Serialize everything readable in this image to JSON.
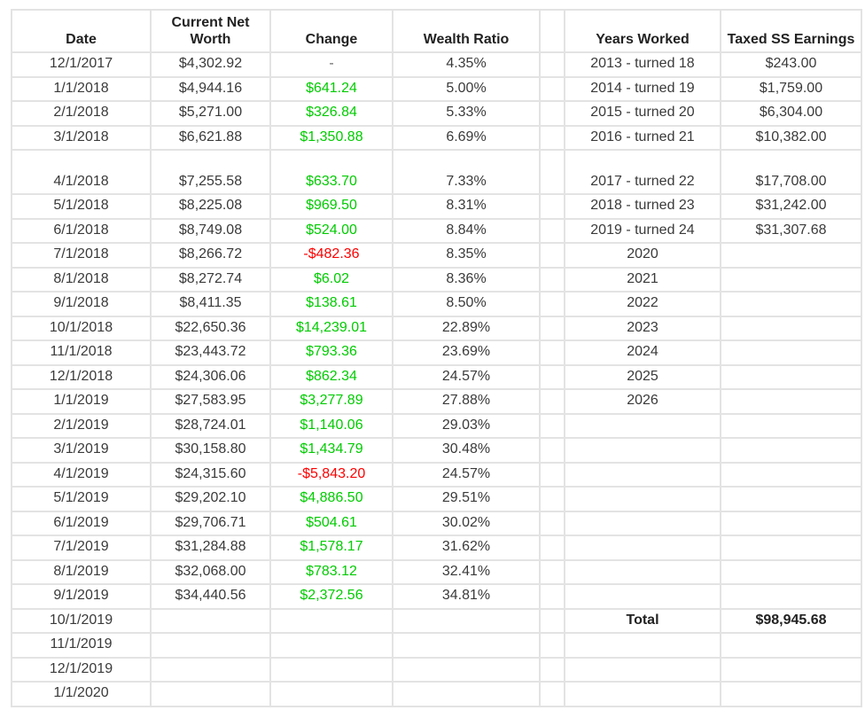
{
  "colors": {
    "positive_change": "#00CC00",
    "negative_change": "#FF0000",
    "dash_placeholder": "#6A6A6A",
    "body_text": "#3A3A3A",
    "header_text": "#222222",
    "gridline": "#E3E3E3"
  },
  "table": {
    "headers": {
      "date": "Date",
      "net_worth": "Current Net\nWorth",
      "change": "Change",
      "wealth_ratio": "Wealth Ratio",
      "spacer": "",
      "years_worked": "Years Worked",
      "taxed_ss": "Taxed SS Earnings"
    },
    "rows": [
      {
        "date": "12/1/2017",
        "net": "$4,302.92",
        "change": "-",
        "tone": "dash",
        "ratio": "4.35%",
        "years": "2013 - turned 18",
        "ss": "$243.00"
      },
      {
        "date": "1/1/2018",
        "net": "$4,944.16",
        "change": "$641.24",
        "tone": "up",
        "ratio": "5.00%",
        "years": "2014 - turned 19",
        "ss": "$1,759.00"
      },
      {
        "date": "2/1/2018",
        "net": "$5,271.00",
        "change": "$326.84",
        "tone": "up",
        "ratio": "5.33%",
        "years": "2015 - turned 20",
        "ss": "$6,304.00"
      },
      {
        "date": "3/1/2018",
        "net": "$6,621.88",
        "change": "$1,350.88",
        "tone": "up",
        "ratio": "6.69%",
        "years": "2016 - turned 21",
        "ss": "$10,382.00"
      },
      {
        "date": "4/1/2018",
        "net": "$7,255.58",
        "change": "$633.70",
        "tone": "up",
        "ratio": "7.33%",
        "years": "2017 - turned 22",
        "ss": "$17,708.00",
        "tall": true
      },
      {
        "date": "5/1/2018",
        "net": "$8,225.08",
        "change": "$969.50",
        "tone": "up",
        "ratio": "8.31%",
        "years": "2018 - turned 23",
        "ss": "$31,242.00"
      },
      {
        "date": "6/1/2018",
        "net": "$8,749.08",
        "change": "$524.00",
        "tone": "up",
        "ratio": "8.84%",
        "years": "2019 - turned 24",
        "ss": "$31,307.68"
      },
      {
        "date": "7/1/2018",
        "net": "$8,266.72",
        "change": "-$482.36",
        "tone": "down",
        "ratio": "8.35%",
        "years": "2020",
        "ss": ""
      },
      {
        "date": "8/1/2018",
        "net": "$8,272.74",
        "change": "$6.02",
        "tone": "up",
        "ratio": "8.36%",
        "years": "2021",
        "ss": ""
      },
      {
        "date": "9/1/2018",
        "net": "$8,411.35",
        "change": "$138.61",
        "tone": "up",
        "ratio": "8.50%",
        "years": "2022",
        "ss": ""
      },
      {
        "date": "10/1/2018",
        "net": "$22,650.36",
        "change": "$14,239.01",
        "tone": "up",
        "ratio": "22.89%",
        "years": "2023",
        "ss": ""
      },
      {
        "date": "11/1/2018",
        "net": "$23,443.72",
        "change": "$793.36",
        "tone": "up",
        "ratio": "23.69%",
        "years": "2024",
        "ss": ""
      },
      {
        "date": "12/1/2018",
        "net": "$24,306.06",
        "change": "$862.34",
        "tone": "up",
        "ratio": "24.57%",
        "years": "2025",
        "ss": ""
      },
      {
        "date": "1/1/2019",
        "net": "$27,583.95",
        "change": "$3,277.89",
        "tone": "up",
        "ratio": "27.88%",
        "years": "2026",
        "ss": ""
      },
      {
        "date": "2/1/2019",
        "net": "$28,724.01",
        "change": "$1,140.06",
        "tone": "up",
        "ratio": "29.03%",
        "years": "",
        "ss": ""
      },
      {
        "date": "3/1/2019",
        "net": "$30,158.80",
        "change": "$1,434.79",
        "tone": "up",
        "ratio": "30.48%",
        "years": "",
        "ss": ""
      },
      {
        "date": "4/1/2019",
        "net": "$24,315.60",
        "change": "-$5,843.20",
        "tone": "down",
        "ratio": "24.57%",
        "years": "",
        "ss": ""
      },
      {
        "date": "5/1/2019",
        "net": "$29,202.10",
        "change": "$4,886.50",
        "tone": "up",
        "ratio": "29.51%",
        "years": "",
        "ss": ""
      },
      {
        "date": "6/1/2019",
        "net": "$29,706.71",
        "change": "$504.61",
        "tone": "up",
        "ratio": "30.02%",
        "years": "",
        "ss": ""
      },
      {
        "date": "7/1/2019",
        "net": "$31,284.88",
        "change": "$1,578.17",
        "tone": "up",
        "ratio": "31.62%",
        "years": "",
        "ss": ""
      },
      {
        "date": "8/1/2019",
        "net": "$32,068.00",
        "change": "$783.12",
        "tone": "up",
        "ratio": "32.41%",
        "years": "",
        "ss": ""
      },
      {
        "date": "9/1/2019",
        "net": "$34,440.56",
        "change": "$2,372.56",
        "tone": "up",
        "ratio": "34.81%",
        "years": "",
        "ss": ""
      },
      {
        "date": "10/1/2019",
        "net": "",
        "change": "",
        "tone": "none",
        "ratio": "",
        "years": "Total",
        "ss": "$98,945.68",
        "total": true
      },
      {
        "date": "11/1/2019",
        "net": "",
        "change": "",
        "tone": "none",
        "ratio": "",
        "years": "",
        "ss": ""
      },
      {
        "date": "12/1/2019",
        "net": "",
        "change": "",
        "tone": "none",
        "ratio": "",
        "years": "",
        "ss": ""
      },
      {
        "date": "1/1/2020",
        "net": "",
        "change": "",
        "tone": "none",
        "ratio": "",
        "years": "",
        "ss": ""
      }
    ]
  }
}
